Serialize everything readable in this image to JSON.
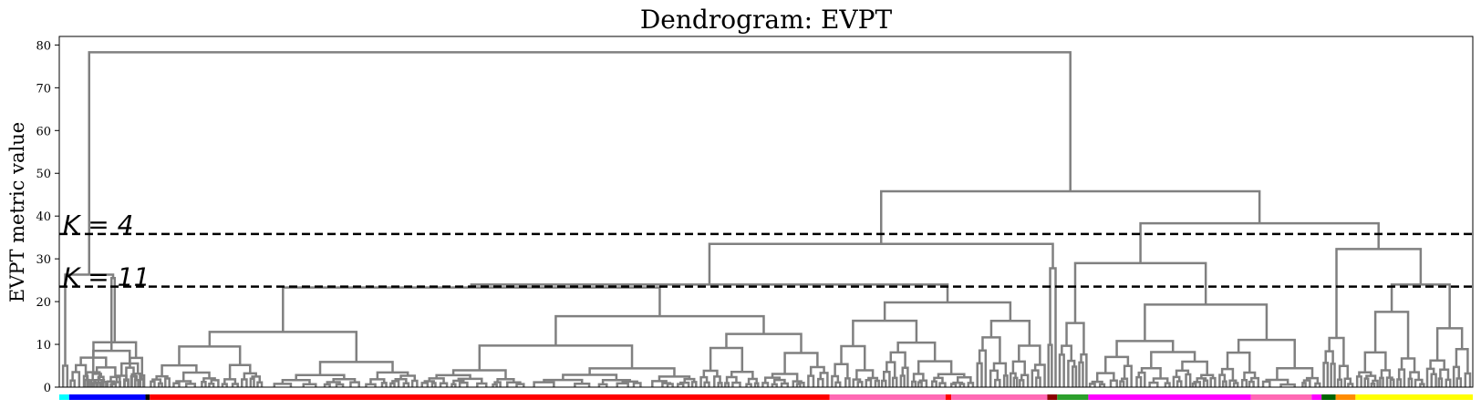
{
  "chart_data": {
    "type": "dendrogram",
    "title": "Dendrogram: EVPT",
    "ylabel": "EVPT metric value",
    "xlabel": "",
    "ylim": [
      0,
      82
    ],
    "yticks": [
      0,
      10,
      20,
      30,
      40,
      50,
      60,
      70,
      80
    ],
    "grid": false,
    "link_color": "#808080",
    "thresholds": [
      {
        "label": "K = 4",
        "value": 35.8
      },
      {
        "label": "K = 11",
        "value": 23.5
      }
    ],
    "top_links": [
      {
        "name": "root",
        "height": 78.3,
        "children": [
          "cluster-cyan-blue",
          "right-group"
        ]
      },
      {
        "name": "right-group",
        "height": 45.8,
        "children": [
          "red-pink-group",
          "green-magenta-yellow-group"
        ]
      },
      {
        "name": "red-pink-group",
        "height": 33.5,
        "children": [
          "red-pink-subgroup",
          "darkred-leaf"
        ]
      },
      {
        "name": "red-pink-subgroup",
        "height": 24.0,
        "children": [
          "red-cluster",
          "pink-cluster"
        ]
      },
      {
        "name": "green-magenta-yellow-group",
        "height": 38.3,
        "children": [
          "green-magenta-group",
          "orange-yellow-group"
        ]
      },
      {
        "name": "green-magenta-group",
        "height": 29.0,
        "children": [
          "green-cluster",
          "magenta-cluster"
        ]
      },
      {
        "name": "orange-yellow-group",
        "height": 32.3,
        "children": [
          "orange-cluster",
          "yellow-cluster"
        ]
      },
      {
        "name": "cluster-cyan-blue",
        "height": 26.3,
        "children": [
          "cyan-cluster",
          "blue-cluster"
        ]
      }
    ],
    "cluster_colors": [
      {
        "name": "cyan",
        "color": "#00ffff",
        "x_range": [
          0.0,
          0.007
        ]
      },
      {
        "name": "blue",
        "color": "#0000ff",
        "x_range": [
          0.007,
          0.061
        ]
      },
      {
        "name": "black",
        "color": "#000000",
        "x_range": [
          0.061,
          0.064
        ]
      },
      {
        "name": "red",
        "color": "#ff0000",
        "x_range": [
          0.064,
          0.545
        ]
      },
      {
        "name": "hotpink-1",
        "color": "#ff69b4",
        "x_range": [
          0.545,
          0.627
        ]
      },
      {
        "name": "red-2",
        "color": "#ff0000",
        "x_range": [
          0.627,
          0.631
        ]
      },
      {
        "name": "hotpink-2",
        "color": "#ff69b4",
        "x_range": [
          0.631,
          0.699
        ]
      },
      {
        "name": "darkred",
        "color": "#8b0000",
        "x_range": [
          0.699,
          0.706
        ]
      },
      {
        "name": "green",
        "color": "#2ca02c",
        "x_range": [
          0.706,
          0.728
        ]
      },
      {
        "name": "magenta",
        "color": "#ff00ff",
        "x_range": [
          0.728,
          0.843
        ]
      },
      {
        "name": "hotpink-3",
        "color": "#ff69b4",
        "x_range": [
          0.843,
          0.886
        ]
      },
      {
        "name": "magenta-2",
        "color": "#ff00ff",
        "x_range": [
          0.886,
          0.893
        ]
      },
      {
        "name": "darkgreen",
        "color": "#006400",
        "x_range": [
          0.893,
          0.903
        ]
      },
      {
        "name": "darkorange",
        "color": "#ff8c00",
        "x_range": [
          0.903,
          0.917
        ]
      },
      {
        "name": "yellow",
        "color": "#ffff00",
        "x_range": [
          0.917,
          1.0
        ]
      }
    ]
  }
}
